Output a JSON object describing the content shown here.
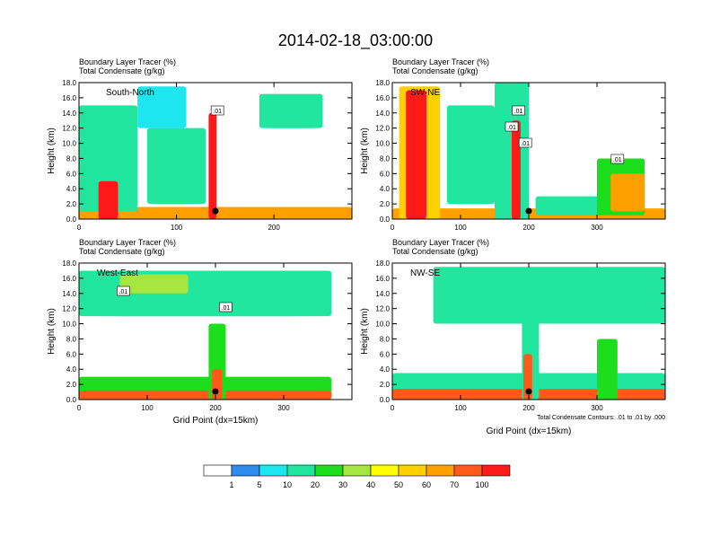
{
  "figure": {
    "title": "2014-02-18_03:00:00",
    "ylabel": "Height (km)",
    "xlabel": "Grid Point (dx=15km)",
    "header_line1": "Boundary Layer Tracer    (%)",
    "header_line2": "Total Condensate   (g/kg)",
    "contour_note": "Total Condensate Contours: .01 to .01 by .000",
    "contour_label": ".01"
  },
  "colorbar": {
    "colors": [
      "#ffffff",
      "#2f8cf0",
      "#1ee6f0",
      "#22e6a0",
      "#1cde1c",
      "#a6e640",
      "#ffff00",
      "#ffd000",
      "#ffa000",
      "#ff5a1a",
      "#ff1a1a"
    ],
    "labels": [
      "1",
      "5",
      "10",
      "20",
      "30",
      "40",
      "50",
      "60",
      "70",
      "100"
    ]
  },
  "chart_data": [
    {
      "type": "heatmap",
      "panel_label": "South-North",
      "xlim": [
        0,
        280
      ],
      "xticks": [
        0,
        100,
        200
      ],
      "ylim": [
        0,
        18
      ],
      "yticks": [
        "0.0",
        "2.0",
        "4.0",
        "6.0",
        "8.0",
        "10.0",
        "12.0",
        "14.0",
        "16.0",
        "18.0"
      ],
      "marker_x": 140,
      "show_xlabel": false,
      "show_note": false,
      "features": [
        {
          "x0": 0,
          "x1": 280,
          "base": 0,
          "top": 1.6,
          "level": 8
        },
        {
          "x0": 0,
          "x1": 60,
          "base": 1,
          "top": 15,
          "level": 3
        },
        {
          "x0": 70,
          "x1": 130,
          "base": 2,
          "top": 12,
          "level": 3
        },
        {
          "x0": 60,
          "x1": 110,
          "base": 12,
          "top": 17.5,
          "level": 2
        },
        {
          "x0": 185,
          "x1": 250,
          "base": 12,
          "top": 16.5,
          "level": 3
        },
        {
          "x0": 20,
          "x1": 40,
          "base": 0,
          "top": 5,
          "level": 10
        },
        {
          "x0": 133,
          "x1": 141,
          "base": 0,
          "top": 14,
          "level": 10
        }
      ],
      "contour_labels_x": [
        142
      ]
    },
    {
      "type": "heatmap",
      "panel_label": "SW-NE",
      "xlim": [
        0,
        400
      ],
      "xticks": [
        0,
        100,
        200,
        300
      ],
      "ylim": [
        0,
        18
      ],
      "yticks": [
        "0.0",
        "2.0",
        "4.0",
        "6.0",
        "8.0",
        "10.0",
        "12.0",
        "14.0",
        "16.0",
        "18.0"
      ],
      "marker_x": 200,
      "show_xlabel": false,
      "show_note": false,
      "features": [
        {
          "x0": 0,
          "x1": 400,
          "base": 0,
          "top": 1.4,
          "level": 8
        },
        {
          "x0": 10,
          "x1": 70,
          "base": 0,
          "top": 17.5,
          "level": 7
        },
        {
          "x0": 20,
          "x1": 50,
          "base": 0,
          "top": 17,
          "level": 10
        },
        {
          "x0": 80,
          "x1": 150,
          "base": 2,
          "top": 15,
          "level": 3
        },
        {
          "x0": 150,
          "x1": 200,
          "base": 0,
          "top": 18,
          "level": 3
        },
        {
          "x0": 175,
          "x1": 188,
          "base": 0,
          "top": 13,
          "level": 10
        },
        {
          "x0": 210,
          "x1": 330,
          "base": 0.5,
          "top": 3,
          "level": 3
        },
        {
          "x0": 300,
          "x1": 370,
          "base": 0.5,
          "top": 8,
          "level": 4
        },
        {
          "x0": 320,
          "x1": 370,
          "base": 1,
          "top": 6,
          "level": 8
        }
      ],
      "contour_labels_x": [
        185,
        175,
        195,
        330
      ]
    },
    {
      "type": "heatmap",
      "panel_label": "West-East",
      "xlim": [
        0,
        400
      ],
      "xticks": [
        0,
        100,
        200,
        300
      ],
      "ylim": [
        0,
        18
      ],
      "yticks": [
        "0.0",
        "2.0",
        "4.0",
        "6.0",
        "8.0",
        "10.0",
        "12.0",
        "14.0",
        "16.0",
        "18.0"
      ],
      "marker_x": 200,
      "show_xlabel": true,
      "show_note": false,
      "features": [
        {
          "x0": 0,
          "x1": 370,
          "base": 0,
          "top": 3,
          "level": 4
        },
        {
          "x0": 0,
          "x1": 370,
          "base": 0,
          "top": 1.2,
          "level": 9
        },
        {
          "x0": 0,
          "x1": 370,
          "base": 11,
          "top": 17,
          "level": 3
        },
        {
          "x0": 60,
          "x1": 160,
          "base": 14,
          "top": 16.5,
          "level": 5
        },
        {
          "x0": 190,
          "x1": 215,
          "base": 0,
          "top": 10,
          "level": 4
        },
        {
          "x0": 195,
          "x1": 210,
          "base": 0,
          "top": 4,
          "level": 9
        }
      ],
      "contour_labels_x": [
        65,
        215
      ]
    },
    {
      "type": "heatmap",
      "panel_label": "NW-SE",
      "xlim": [
        0,
        400
      ],
      "xticks": [
        0,
        100,
        200,
        300
      ],
      "ylim": [
        0,
        18
      ],
      "yticks": [
        "0.0",
        "2.0",
        "4.0",
        "6.0",
        "8.0",
        "10.0",
        "12.0",
        "14.0",
        "16.0",
        "18.0"
      ],
      "marker_x": 200,
      "show_xlabel": true,
      "show_note": true,
      "features": [
        {
          "x0": 0,
          "x1": 400,
          "base": 0,
          "top": 3.5,
          "level": 3
        },
        {
          "x0": 0,
          "x1": 400,
          "base": 0,
          "top": 1.4,
          "level": 9
        },
        {
          "x0": 60,
          "x1": 400,
          "base": 10,
          "top": 17.5,
          "level": 3
        },
        {
          "x0": 190,
          "x1": 215,
          "base": 0,
          "top": 17,
          "level": 3
        },
        {
          "x0": 192,
          "x1": 205,
          "base": 0,
          "top": 6,
          "level": 9
        },
        {
          "x0": 300,
          "x1": 330,
          "base": 0,
          "top": 8,
          "level": 4
        }
      ],
      "contour_labels_x": []
    }
  ]
}
